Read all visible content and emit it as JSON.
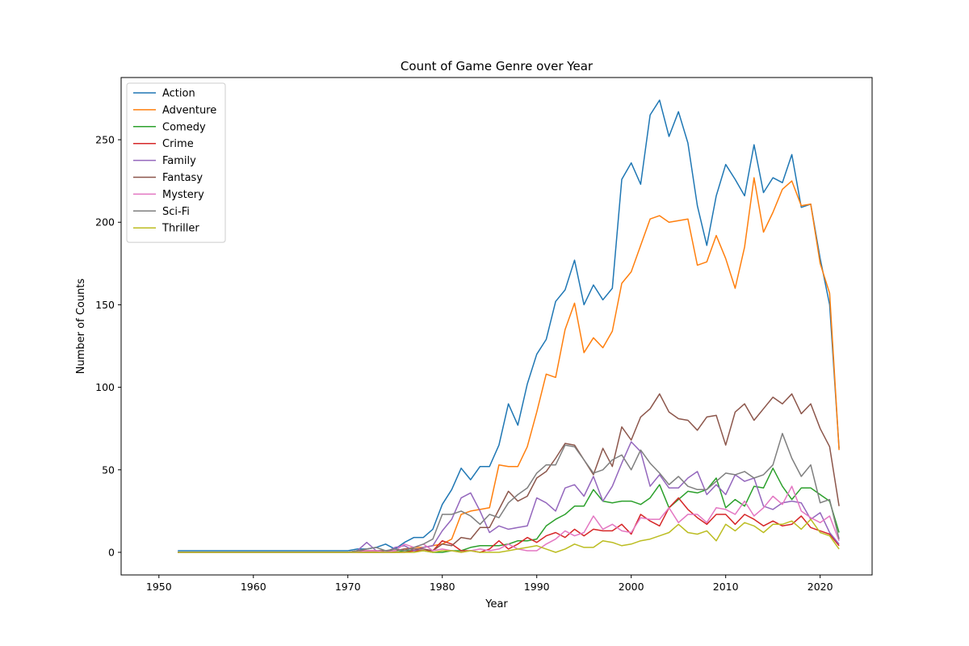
{
  "chart_data": {
    "type": "line",
    "title": "Count of Game Genre over Year",
    "xlabel": "Year",
    "ylabel": "Number of Counts",
    "xlim": [
      1946,
      2025.5
    ],
    "ylim": [
      -13.7,
      287.7
    ],
    "xticks": [
      1950,
      1960,
      1970,
      1980,
      1990,
      2000,
      2010,
      2020
    ],
    "yticks": [
      0,
      50,
      100,
      150,
      200,
      250
    ],
    "legend_position": "top-left",
    "grid": false,
    "x": [
      1952,
      1953,
      1954,
      1955,
      1956,
      1957,
      1958,
      1959,
      1960,
      1961,
      1962,
      1963,
      1964,
      1965,
      1966,
      1967,
      1968,
      1969,
      1970,
      1971,
      1972,
      1973,
      1974,
      1975,
      1976,
      1977,
      1978,
      1979,
      1980,
      1981,
      1982,
      1983,
      1984,
      1985,
      1986,
      1987,
      1988,
      1989,
      1990,
      1991,
      1992,
      1993,
      1994,
      1995,
      1996,
      1997,
      1998,
      1999,
      2000,
      2001,
      2002,
      2003,
      2004,
      2005,
      2006,
      2007,
      2008,
      2009,
      2010,
      2011,
      2012,
      2013,
      2014,
      2015,
      2016,
      2017,
      2018,
      2019,
      2020,
      2021,
      2022
    ],
    "series": [
      {
        "name": "Action",
        "color": "#1f77b4",
        "values": [
          1,
          1,
          1,
          1,
          1,
          1,
          1,
          1,
          1,
          1,
          1,
          1,
          1,
          1,
          1,
          1,
          1,
          1,
          1,
          2,
          2,
          3,
          5,
          2,
          6,
          9,
          9,
          14,
          29,
          38,
          51,
          44,
          52,
          52,
          65,
          90,
          77,
          102,
          120,
          129,
          152,
          159,
          177,
          150,
          162,
          153,
          160,
          226,
          236,
          223,
          265,
          274,
          252,
          267,
          248,
          210,
          186,
          216,
          235,
          226,
          216,
          247,
          218,
          227,
          224,
          241,
          209,
          211,
          178,
          150,
          63
        ]
      },
      {
        "name": "Adventure",
        "color": "#ff7f0e",
        "values": [
          0,
          0,
          0,
          0,
          0,
          0,
          0,
          0,
          0,
          0,
          0,
          0,
          0,
          0,
          0,
          0,
          0,
          0,
          0,
          1,
          1,
          1,
          0,
          1,
          2,
          3,
          3,
          4,
          5,
          8,
          23,
          25,
          26,
          27,
          53,
          52,
          52,
          64,
          85,
          108,
          106,
          135,
          151,
          121,
          130,
          124,
          134,
          163,
          170,
          186,
          202,
          204,
          200,
          201,
          202,
          174,
          176,
          192,
          178,
          160,
          185,
          227,
          194,
          206,
          220,
          225,
          210,
          211,
          175,
          157,
          62
        ]
      },
      {
        "name": "Comedy",
        "color": "#2ca02c",
        "values": [
          0,
          0,
          0,
          0,
          0,
          0,
          0,
          0,
          0,
          0,
          0,
          0,
          0,
          0,
          0,
          0,
          0,
          0,
          0,
          0,
          0,
          0,
          0,
          0,
          1,
          1,
          1,
          0,
          0,
          1,
          1,
          3,
          4,
          4,
          4,
          5,
          7,
          7,
          8,
          16,
          20,
          23,
          28,
          28,
          38,
          31,
          30,
          31,
          31,
          29,
          33,
          41,
          27,
          32,
          37,
          36,
          38,
          45,
          27,
          32,
          28,
          40,
          39,
          51,
          40,
          32,
          39,
          39,
          35,
          31,
          12
        ]
      },
      {
        "name": "Crime",
        "color": "#d62728",
        "values": [
          0,
          0,
          0,
          0,
          0,
          0,
          0,
          0,
          0,
          0,
          0,
          0,
          0,
          0,
          0,
          0,
          0,
          0,
          0,
          0,
          0,
          0,
          0,
          0,
          0,
          1,
          1,
          1,
          7,
          5,
          1,
          1,
          0,
          2,
          7,
          2,
          5,
          9,
          6,
          10,
          12,
          9,
          14,
          10,
          14,
          13,
          13,
          17,
          11,
          23,
          19,
          16,
          27,
          33,
          26,
          21,
          17,
          23,
          23,
          17,
          23,
          20,
          16,
          19,
          16,
          17,
          22,
          15,
          13,
          11,
          4
        ]
      },
      {
        "name": "Family",
        "color": "#9467bd",
        "values": [
          0,
          0,
          0,
          0,
          0,
          0,
          0,
          0,
          0,
          0,
          0,
          0,
          0,
          0,
          0,
          0,
          0,
          0,
          0,
          1,
          6,
          1,
          0,
          3,
          4,
          1,
          3,
          4,
          13,
          20,
          33,
          36,
          25,
          12,
          16,
          14,
          15,
          16,
          33,
          30,
          25,
          39,
          41,
          34,
          46,
          31,
          40,
          54,
          67,
          61,
          40,
          47,
          39,
          39,
          45,
          49,
          35,
          41,
          35,
          47,
          43,
          45,
          28,
          26,
          30,
          31,
          30,
          20,
          24,
          12,
          5
        ]
      },
      {
        "name": "Fantasy",
        "color": "#8c564b",
        "values": [
          0,
          0,
          0,
          0,
          0,
          0,
          0,
          0,
          0,
          0,
          0,
          0,
          0,
          0,
          0,
          0,
          0,
          0,
          0,
          1,
          1,
          1,
          1,
          1,
          2,
          2,
          2,
          1,
          5,
          4,
          9,
          8,
          15,
          15,
          26,
          37,
          31,
          34,
          45,
          49,
          57,
          66,
          65,
          56,
          47,
          63,
          52,
          76,
          68,
          82,
          87,
          96,
          85,
          81,
          80,
          74,
          82,
          83,
          65,
          85,
          90,
          80,
          87,
          94,
          90,
          96,
          84,
          90,
          75,
          64,
          28
        ]
      },
      {
        "name": "Mystery",
        "color": "#e377c2",
        "values": [
          0,
          0,
          0,
          0,
          0,
          0,
          0,
          0,
          0,
          0,
          0,
          0,
          0,
          0,
          0,
          0,
          0,
          0,
          0,
          0,
          1,
          1,
          0,
          1,
          5,
          3,
          5,
          1,
          2,
          1,
          0,
          1,
          2,
          1,
          2,
          5,
          2,
          1,
          1,
          5,
          8,
          13,
          10,
          12,
          22,
          14,
          17,
          13,
          12,
          21,
          20,
          20,
          27,
          18,
          23,
          23,
          18,
          27,
          26,
          23,
          31,
          22,
          27,
          34,
          29,
          40,
          25,
          21,
          18,
          22,
          7
        ]
      },
      {
        "name": "Sci-Fi",
        "color": "#7f7f7f",
        "values": [
          0,
          0,
          0,
          0,
          0,
          0,
          0,
          0,
          0,
          0,
          0,
          0,
          0,
          0,
          0,
          0,
          0,
          0,
          0,
          1,
          2,
          3,
          1,
          2,
          1,
          3,
          5,
          8,
          23,
          23,
          25,
          22,
          17,
          23,
          21,
          30,
          35,
          39,
          48,
          53,
          53,
          65,
          64,
          56,
          48,
          50,
          56,
          59,
          50,
          62,
          54,
          48,
          41,
          46,
          40,
          38,
          38,
          43,
          48,
          47,
          49,
          45,
          47,
          53,
          72,
          57,
          46,
          53,
          30,
          32,
          8
        ]
      },
      {
        "name": "Thriller",
        "color": "#bcbd22",
        "values": [
          0,
          0,
          0,
          0,
          0,
          0,
          0,
          0,
          0,
          0,
          0,
          0,
          0,
          0,
          0,
          0,
          0,
          0,
          0,
          0,
          0,
          0,
          0,
          0,
          0,
          0,
          1,
          0,
          1,
          1,
          0,
          1,
          0,
          0,
          0,
          1,
          2,
          3,
          4,
          2,
          0,
          2,
          5,
          3,
          3,
          7,
          6,
          4,
          5,
          7,
          8,
          10,
          12,
          17,
          12,
          11,
          13,
          7,
          17,
          13,
          18,
          16,
          12,
          17,
          17,
          19,
          14,
          20,
          12,
          10,
          2
        ]
      }
    ]
  }
}
